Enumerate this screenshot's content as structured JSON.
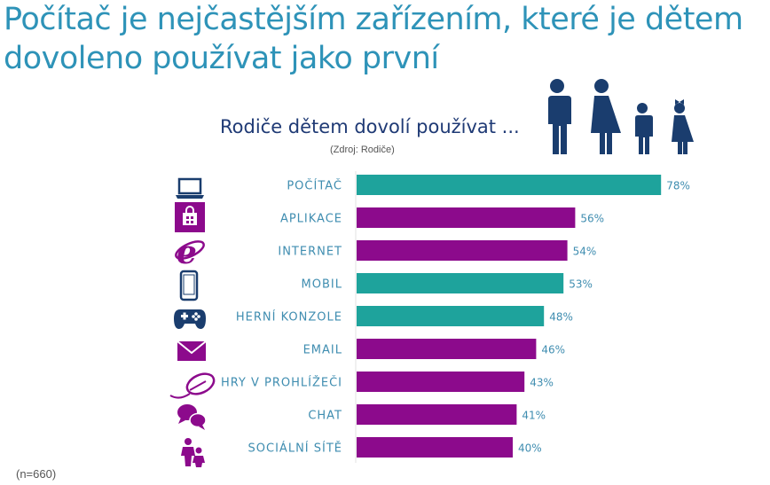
{
  "headline": {
    "line1": "Počítač je nejčastějším zařízením, které je dětem",
    "line2": "dovoleno používat jako první"
  },
  "subtitle": "Rodiče dětem dovolí používat ...",
  "source": "(Zdroj: Rodiče)",
  "footnote": "(n=660)",
  "colors": {
    "teal": "#1ea39c",
    "purple": "#8c0a8c",
    "label": "#3f8db0",
    "value": "#3f8db0",
    "headline": "#2e93b8",
    "subtitle": "#1f3a75",
    "icon_dark": "#1a3d6e"
  },
  "chart_data": {
    "type": "bar",
    "orientation": "horizontal",
    "categories": [
      "POČÍTAČ",
      "APLIKACE",
      "INTERNET",
      "MOBIL",
      "HERNÍ KONZOLE",
      "EMAIL",
      "HRY V PROHLÍŽEČI",
      "CHAT",
      "SOCIÁLNÍ SÍTĚ"
    ],
    "values": [
      78,
      56,
      54,
      53,
      48,
      46,
      43,
      41,
      40
    ],
    "value_labels": [
      "78%",
      "56%",
      "54%",
      "53%",
      "48%",
      "46%",
      "43%",
      "41%",
      "40%"
    ],
    "bar_colors": [
      "teal",
      "purple",
      "purple",
      "teal",
      "teal",
      "purple",
      "purple",
      "purple",
      "purple"
    ],
    "icons": [
      "laptop-icon",
      "store-icon",
      "internet-explorer-icon",
      "phone-icon",
      "gamepad-icon",
      "email-icon",
      "mouse-icon",
      "chat-icon",
      "people-icon"
    ],
    "xlim": [
      0,
      100
    ],
    "grid": false,
    "legend": "none"
  }
}
